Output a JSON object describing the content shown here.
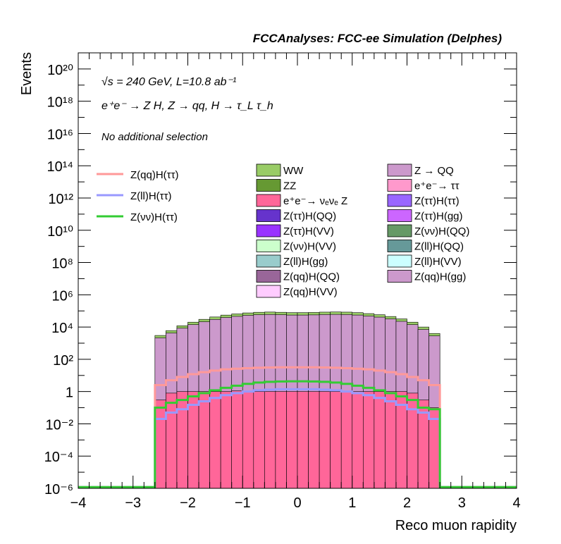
{
  "header": {
    "title": "FCCAnalyses: FCC-ee Simulation (Delphes)"
  },
  "annotations": {
    "energy_lumi": "√s = 240 GeV, L=10.8 ab⁻¹",
    "process": "e⁺e⁻ → Z H, Z → qq, H → τ_L τ_h",
    "selection": "No additional selection"
  },
  "chart_data": {
    "type": "bar",
    "style": "stacked-histogram-log",
    "xlabel": "Reco muon rapidity",
    "ylabel": "Events",
    "xlim": [
      -4,
      4
    ],
    "ylim": [
      1e-06,
      1e+21
    ],
    "log_y": true,
    "grid": false,
    "x_ticks": [
      -4,
      -3,
      -2,
      -1,
      0,
      1,
      2,
      3,
      4
    ],
    "x_tick_labels": [
      "−4",
      "−3",
      "−2",
      "−1",
      "0",
      "1",
      "2",
      "3",
      "4"
    ],
    "y_ticks": [
      1e-06,
      0.0001,
      0.01,
      1,
      100.0,
      10000.0,
      1000000.0,
      100000000.0,
      10000000000.0,
      1000000000000.0,
      100000000000000.0,
      1e+16,
      1e+18,
      1e+20
    ],
    "y_tick_labels": [
      "10⁻⁶",
      "10⁻⁴",
      "10⁻²",
      "1",
      "10²",
      "10⁴",
      "10⁶",
      "10⁸",
      "10¹⁰",
      "10¹²",
      "10¹⁴",
      "10¹⁶",
      "10¹⁸",
      "10²⁰"
    ],
    "bin_edges": [
      -2.6,
      -2.4,
      -2.2,
      -2.0,
      -1.8,
      -1.6,
      -1.4,
      -1.2,
      -1.0,
      -0.8,
      -0.6,
      -0.4,
      -0.2,
      0.0,
      0.2,
      0.4,
      0.6,
      0.8,
      1.0,
      1.2,
      1.4,
      1.6,
      1.8,
      2.0,
      2.2,
      2.4,
      2.6
    ],
    "stack_totals": [
      3000,
      6000,
      12000,
      20000,
      30000,
      42000,
      55000,
      65000,
      75000,
      82000,
      85000,
      82000,
      78000,
      78000,
      80000,
      84000,
      86000,
      84000,
      78000,
      68000,
      58000,
      45000,
      32000,
      20000,
      10000,
      4000
    ],
    "ee_nunu_z": [
      0.3,
      0.8,
      1.0,
      1.0,
      1.0,
      1.0,
      1.0,
      1.1,
      1.0,
      1.0,
      1.0,
      1.0,
      1.0,
      1.0,
      1.0,
      1.0,
      1.0,
      1.0,
      1.0,
      1.0,
      1.0,
      1.0,
      1.0,
      0.8,
      0.3,
      0.1
    ],
    "stack_layers": [
      {
        "name": "Z(qq)H(gg)",
        "color": "#cc99cc",
        "offset_dex": -0.15
      },
      {
        "name": "Z(qq)H(VV)",
        "color": "#ffccff",
        "offset_dex": -0.55
      },
      {
        "name": "Z(ll)H(VV)",
        "color": "#ccffff",
        "offset_dex": -0.85
      },
      {
        "name": "Z(qq)H(QQ)",
        "color": "#996699",
        "offset_dex": -1.15
      },
      {
        "name": "Z(ll)H(QQ)",
        "color": "#669999",
        "offset_dex": -1.45
      },
      {
        "name": "Z(ll)H(gg)",
        "color": "#99cccc",
        "offset_dex": -1.7
      },
      {
        "name": "Z(νν)H(VV)",
        "color": "#ccffcc",
        "offset_dex": -1.95
      },
      {
        "name": "Z(νν)H(QQ)",
        "color": "#669966",
        "offset_dex": -2.2
      },
      {
        "name": "Z(ττ)H(VV)",
        "color": "#9933ff",
        "offset_dex": -2.45
      },
      {
        "name": "Z(ττ)H(gg)",
        "color": "#cc66ff",
        "offset_dex": -2.65
      },
      {
        "name": "Z(ττ)H(QQ)",
        "color": "#6633cc",
        "offset_dex": -2.85
      },
      {
        "name": "Z(ττ)H(ττ)",
        "color": "#9966ff",
        "offset_dex": -3.05
      },
      {
        "name": "e⁺e⁻→ ννZ",
        "color": "#ff6699",
        "offset_dex": -3.3
      },
      {
        "name": "e⁺e⁻→ ττ",
        "color": "#ff99cc",
        "offset_dex": -2.3
      },
      {
        "name": "Z → QQ",
        "color": "#cc99cc",
        "offset_dex": -2.0
      },
      {
        "name": "ZZ",
        "color": "#669933",
        "offset_dex": -1.4
      },
      {
        "name": "WW",
        "color": "#99cc66",
        "offset_dex": 0
      }
    ],
    "series": [
      {
        "name": "Z(qq)H(ττ)",
        "color": "#ff9999",
        "values": [
          2.5,
          5,
          8,
          12,
          16,
          20,
          24,
          26,
          28,
          30,
          31,
          32,
          32,
          32,
          32,
          31,
          30,
          28,
          26,
          24,
          20,
          16,
          12,
          8,
          5,
          2.5
        ]
      },
      {
        "name": "Z(ll)H(ττ)",
        "color": "#9999ff",
        "values": [
          0.02,
          0.05,
          0.08,
          0.15,
          0.25,
          0.4,
          0.6,
          0.8,
          1.0,
          1.2,
          1.3,
          1.4,
          1.4,
          1.4,
          1.4,
          1.3,
          1.2,
          1.0,
          0.8,
          0.6,
          0.4,
          0.25,
          0.15,
          0.08,
          0.05,
          0.02
        ]
      },
      {
        "name": "Z(νν)H(ττ)",
        "color": "#33cc33",
        "values": [
          0.1,
          0.2,
          0.3,
          0.5,
          0.8,
          1.2,
          1.7,
          2.3,
          3.0,
          3.6,
          4.0,
          4.2,
          4.3,
          4.3,
          4.2,
          4.0,
          3.6,
          3.0,
          2.3,
          1.7,
          1.2,
          0.8,
          0.5,
          0.3,
          0.1,
          0.08
        ]
      }
    ]
  },
  "legend": {
    "lines": [
      {
        "label": "Z(qq)H(ττ)",
        "color": "#ff9999"
      },
      {
        "label": "Z(ll)H(ττ)",
        "color": "#9999ff"
      },
      {
        "label": "Z(νν)H(ττ)",
        "color": "#33cc33"
      }
    ],
    "col1": [
      {
        "label": "WW",
        "color": "#99cc66"
      },
      {
        "label": "ZZ",
        "color": "#669933"
      },
      {
        "label": "e⁺e⁻→ νₑνₑ Z",
        "color": "#ff6699"
      },
      {
        "label": "Z(ττ)H(QQ)",
        "color": "#6633cc"
      },
      {
        "label": "Z(ττ)H(VV)",
        "color": "#9933ff"
      },
      {
        "label": "Z(νν)H(VV)",
        "color": "#ccffcc"
      },
      {
        "label": "Z(ll)H(gg)",
        "color": "#99cccc"
      },
      {
        "label": "Z(qq)H(QQ)",
        "color": "#996699"
      },
      {
        "label": "Z(qq)H(VV)",
        "color": "#ffccff"
      }
    ],
    "col2": [
      {
        "label": "Z → QQ",
        "color": "#cc99cc"
      },
      {
        "label": "e⁺e⁻→ ττ",
        "color": "#ff99cc"
      },
      {
        "label": "Z(ττ)H(ττ)",
        "color": "#9966ff"
      },
      {
        "label": "Z(ττ)H(gg)",
        "color": "#cc66ff"
      },
      {
        "label": "Z(νν)H(QQ)",
        "color": "#669966"
      },
      {
        "label": "Z(ll)H(QQ)",
        "color": "#669999"
      },
      {
        "label": "Z(ll)H(VV)",
        "color": "#ccffff"
      },
      {
        "label": "Z(qq)H(gg)",
        "color": "#cc99cc"
      }
    ]
  }
}
